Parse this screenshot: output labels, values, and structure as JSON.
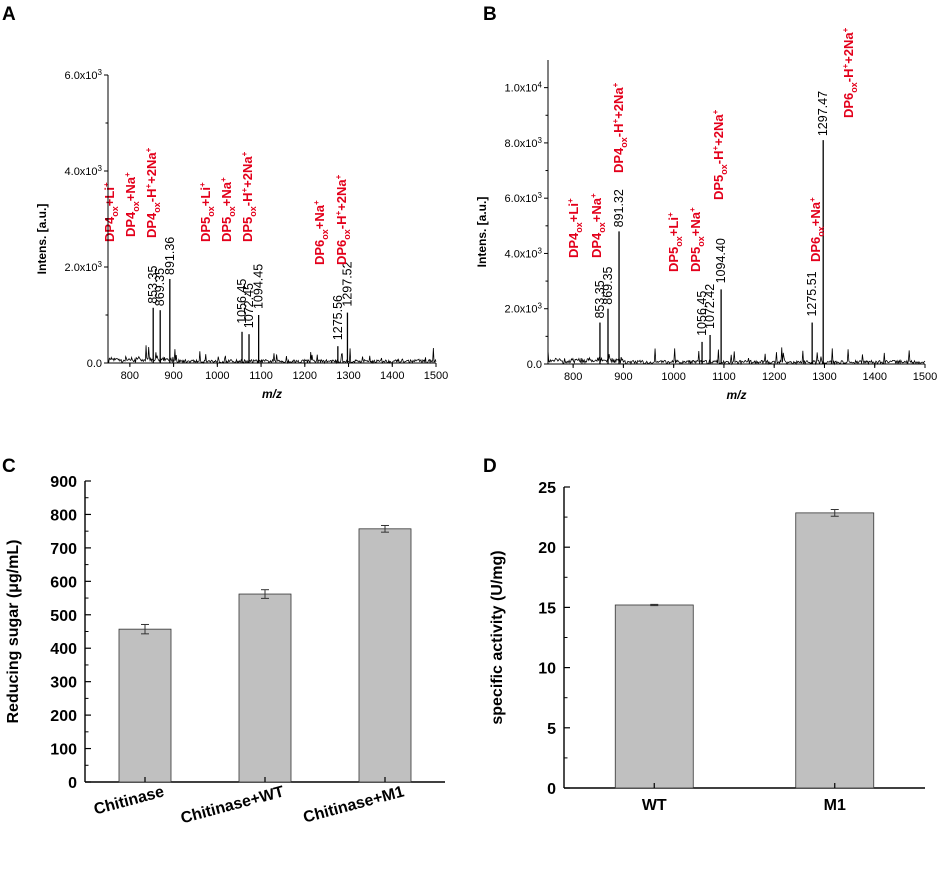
{
  "panels": {
    "a": "A",
    "b": "B",
    "c": "C",
    "d": "D"
  },
  "chart_data": [
    {
      "panel": "A",
      "type": "line",
      "title": "",
      "xlabel": "m/z",
      "ylabel": "Intens. [a.u.]",
      "xlim": [
        750,
        1500
      ],
      "ylim": [
        0,
        6000
      ],
      "xticks": [
        800,
        900,
        1000,
        1100,
        1200,
        1300,
        1400,
        1500
      ],
      "yticks": [
        0,
        2000,
        4000,
        6000
      ],
      "ytick_labels": [
        "0.0",
        "2.0x10^3",
        "4.0x10^3",
        "6.0x10^3"
      ],
      "peaks": [
        {
          "mz": 853.35,
          "intensity": 1150,
          "label": "853.35"
        },
        {
          "mz": 869.35,
          "intensity": 1100,
          "label": "869.35"
        },
        {
          "mz": 891.36,
          "intensity": 1750,
          "label": "891.36"
        },
        {
          "mz": 1056.45,
          "intensity": 650,
          "label": "1056.45"
        },
        {
          "mz": 1072.45,
          "intensity": 600,
          "label": "1072.45"
        },
        {
          "mz": 1094.45,
          "intensity": 1000,
          "label": "1094.45"
        },
        {
          "mz": 1275.56,
          "intensity": 350,
          "label": "1275.56"
        },
        {
          "mz": 1297.52,
          "intensity": 1050,
          "label": "1297.52"
        }
      ],
      "annotations": [
        {
          "base": "DP4",
          "sub": "ox",
          "rest": "+Li",
          "sup": "+"
        },
        {
          "base": "DP4",
          "sub": "ox",
          "rest": "+Na",
          "sup": "+"
        },
        {
          "base": "DP4",
          "sub": "ox",
          "rest": "-H",
          "sup": "+",
          "rest2": "+2Na",
          "sup2": "+"
        },
        {
          "base": "DP5",
          "sub": "ox",
          "rest": "+Li",
          "sup": "+"
        },
        {
          "base": "DP5",
          "sub": "ox",
          "rest": "+Na",
          "sup": "+"
        },
        {
          "base": "DP5",
          "sub": "ox",
          "rest": "-H",
          "sup": "+",
          "rest2": "+2Na",
          "sup2": "+"
        },
        {
          "base": "DP6",
          "sub": "ox",
          "rest": "+Na",
          "sup": "+"
        },
        {
          "base": "DP6",
          "sub": "ox",
          "rest": "-H",
          "sup": "+",
          "rest2": "+2Na",
          "sup2": "+"
        }
      ]
    },
    {
      "panel": "B",
      "type": "line",
      "title": "",
      "xlabel": "m/z",
      "ylabel": "Intens. [a.u.]",
      "xlim": [
        750,
        1500
      ],
      "ylim": [
        0,
        11000
      ],
      "xticks": [
        800,
        900,
        1000,
        1100,
        1200,
        1300,
        1400,
        1500
      ],
      "yticks": [
        0,
        2000,
        4000,
        6000,
        8000,
        10000
      ],
      "ytick_labels": [
        "0.0",
        "2.0x10^3",
        "4.0x10^3",
        "6.0x10^3",
        "8.0x10^3",
        "1.0x10^4"
      ],
      "peaks": [
        {
          "mz": 853.35,
          "intensity": 1500,
          "label": "853.35"
        },
        {
          "mz": 869.35,
          "intensity": 2000,
          "label": "869.35"
        },
        {
          "mz": 891.32,
          "intensity": 4800,
          "label": "891.32"
        },
        {
          "mz": 1056.45,
          "intensity": 800,
          "label": "1056.45"
        },
        {
          "mz": 1072.42,
          "intensity": 1050,
          "label": "1072.42"
        },
        {
          "mz": 1094.4,
          "intensity": 2700,
          "label": "1094.40"
        },
        {
          "mz": 1275.51,
          "intensity": 1500,
          "label": "1275.51"
        },
        {
          "mz": 1297.47,
          "intensity": 8100,
          "label": "1297.47"
        }
      ],
      "annotations": [
        {
          "base": "DP4",
          "sub": "ox",
          "rest": "+Li",
          "sup": "+"
        },
        {
          "base": "DP4",
          "sub": "ox",
          "rest": "+Na",
          "sup": "+"
        },
        {
          "base": "DP4",
          "sub": "ox",
          "rest": "-H",
          "sup": "+",
          "rest2": "+2Na",
          "sup2": "+"
        },
        {
          "base": "DP5",
          "sub": "ox",
          "rest": "+Li",
          "sup": "+"
        },
        {
          "base": "DP5",
          "sub": "ox",
          "rest": "+Na",
          "sup": "+"
        },
        {
          "base": "DP5",
          "sub": "ox",
          "rest": "-H",
          "sup": "+",
          "rest2": "+2Na",
          "sup2": "+"
        },
        {
          "base": "DP6",
          "sub": "ox",
          "rest": "+Na",
          "sup": "+"
        },
        {
          "base": "DP6",
          "sub": "ox",
          "rest": "-H",
          "sup": "+",
          "rest2": "+2Na",
          "sup2": "+"
        }
      ]
    },
    {
      "panel": "C",
      "type": "bar",
      "title": "",
      "xlabel": "",
      "ylabel": "Reducing sugar (μg/mL)",
      "ylim": [
        0,
        900
      ],
      "yticks": [
        0,
        100,
        200,
        300,
        400,
        500,
        600,
        700,
        800,
        900
      ],
      "categories": [
        "Chitinase",
        "Chitinase+WT",
        "Chitinase+M1"
      ],
      "values": [
        457,
        562,
        757
      ],
      "errors": [
        14,
        13,
        10
      ],
      "bar_color": "#c0c0c0"
    },
    {
      "panel": "D",
      "type": "bar",
      "title": "",
      "xlabel": "",
      "ylabel": "specific activity (U/mg)",
      "ylim": [
        0,
        25
      ],
      "yticks": [
        0,
        5,
        10,
        15,
        20,
        25
      ],
      "categories": [
        "WT",
        "M1"
      ],
      "values": [
        15.2,
        22.85
      ],
      "errors": [
        0.05,
        0.28
      ],
      "bar_color": "#c0c0c0"
    }
  ]
}
